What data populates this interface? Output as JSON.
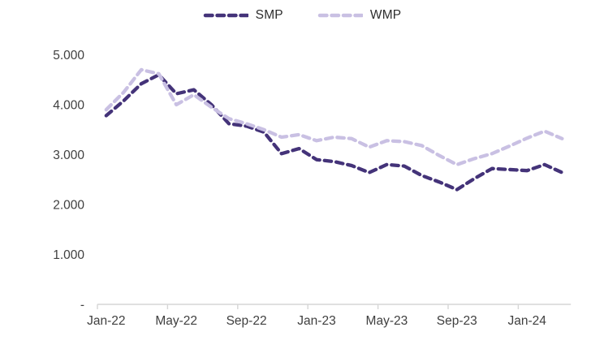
{
  "chart_data": {
    "type": "line",
    "title": "",
    "line_style": "dashed",
    "grid": false,
    "legend_position": "top-center",
    "x": [
      "Jan-22",
      "Feb-22",
      "Mar-22",
      "Apr-22",
      "May-22",
      "Jun-22",
      "Jul-22",
      "Aug-22",
      "Sep-22",
      "Oct-22",
      "Nov-22",
      "Dec-22",
      "Jan-23",
      "Feb-23",
      "Mar-23",
      "Apr-23",
      "May-23",
      "Jun-23",
      "Jul-23",
      "Aug-23",
      "Sep-23",
      "Oct-23",
      "Nov-23",
      "Dec-23",
      "Jan-24",
      "Feb-24",
      "Mar-24"
    ],
    "x_axis": {
      "tick_labels": [
        {
          "label": "Jan-22",
          "index": 0
        },
        {
          "label": "May-22",
          "index": 4
        },
        {
          "label": "Sep-22",
          "index": 8
        },
        {
          "label": "Jan-23",
          "index": 12
        },
        {
          "label": "May-23",
          "index": 16
        },
        {
          "label": "Sep-23",
          "index": 20
        },
        {
          "label": "Jan-24",
          "index": 24
        }
      ],
      "tick_interval_months": 4,
      "axis_color": "#d6d6d6"
    },
    "y_axis": {
      "ticks": [
        {
          "label": "5.000",
          "value": 5000
        },
        {
          "label": "4.000",
          "value": 4000
        },
        {
          "label": "3.000",
          "value": 3000
        },
        {
          "label": "2.000",
          "value": 2000
        },
        {
          "label": "1.000",
          "value": 1000
        },
        {
          "label": "-",
          "value": 0
        }
      ],
      "ylim": [
        0,
        5500
      ]
    },
    "series": [
      {
        "name": "SMP",
        "color": "#443379",
        "values": [
          3780,
          4080,
          4420,
          4600,
          4220,
          4300,
          4000,
          3620,
          3570,
          3450,
          3020,
          3120,
          2900,
          2860,
          2780,
          2640,
          2800,
          2770,
          2580,
          2450,
          2300,
          2520,
          2720,
          2700,
          2680,
          2800,
          2640
        ]
      },
      {
        "name": "WMP",
        "color": "#c9c0e3",
        "values": [
          3900,
          4250,
          4700,
          4620,
          4000,
          4200,
          3950,
          3720,
          3620,
          3500,
          3350,
          3400,
          3280,
          3350,
          3320,
          3150,
          3280,
          3260,
          3180,
          2980,
          2800,
          2920,
          3020,
          3170,
          3330,
          3470,
          3320
        ]
      }
    ]
  }
}
